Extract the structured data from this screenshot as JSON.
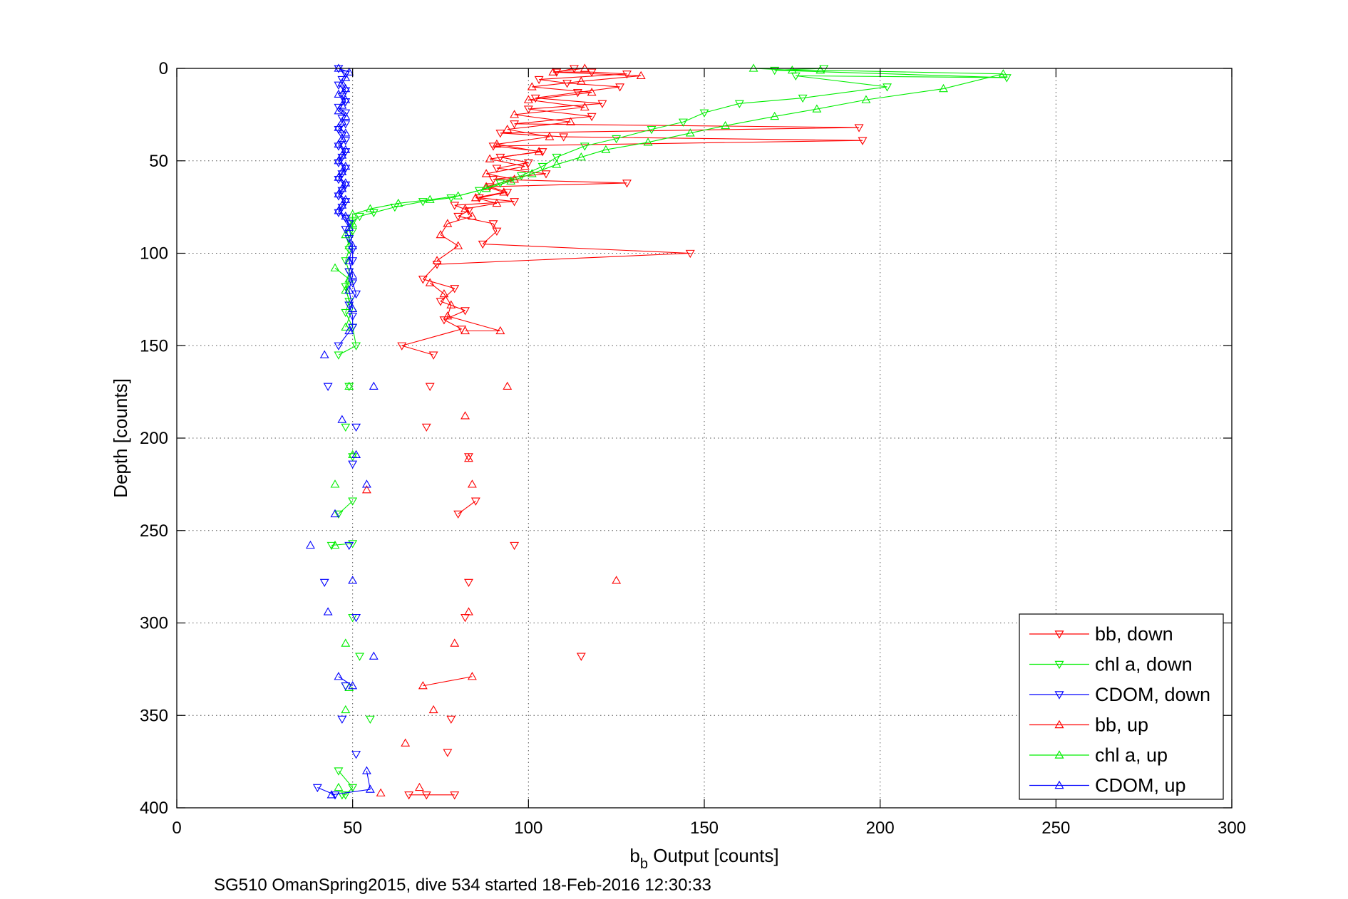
{
  "chart_data": {
    "type": "scatter",
    "xlabel_main": "b",
    "xlabel_sub": "b",
    "xlabel_rest": " Output [counts]",
    "ylabel": "Depth [counts]",
    "caption": "SG510 OmanSpring2015, dive 534 started 18-Feb-2016 12:30:33",
    "xlim": [
      0,
      300
    ],
    "ylim": [
      0,
      400
    ],
    "y_reversed": true,
    "grid": true,
    "legend_position": "bottom-right",
    "x_ticks": [
      "0",
      "50",
      "100",
      "150",
      "200",
      "250",
      "300"
    ],
    "y_ticks": [
      "0",
      "50",
      "100",
      "150",
      "200",
      "250",
      "300",
      "350",
      "400"
    ],
    "series": [
      {
        "name": "bb, down",
        "color": "#ff0000",
        "marker": "triangle-down",
        "points": [
          [
            113,
            0
          ],
          [
            108,
            2
          ],
          [
            118,
            2
          ],
          [
            128,
            3
          ],
          [
            103,
            6
          ],
          [
            111,
            8
          ],
          [
            126,
            10
          ],
          [
            114,
            13
          ],
          [
            102,
            16
          ],
          [
            121,
            19
          ],
          [
            100,
            22
          ],
          [
            118,
            26
          ],
          [
            96,
            30
          ],
          [
            194,
            32
          ],
          [
            92,
            35
          ],
          [
            110,
            37
          ],
          [
            195,
            39
          ],
          [
            90,
            42
          ],
          [
            104,
            45
          ],
          [
            92,
            48
          ],
          [
            100,
            51
          ],
          [
            91,
            54
          ],
          [
            105,
            57
          ],
          [
            90,
            60
          ],
          [
            128,
            62
          ],
          [
            89,
            64
          ],
          [
            94,
            67
          ],
          [
            86,
            70
          ],
          [
            96,
            72
          ],
          [
            79,
            74
          ],
          [
            83,
            77
          ],
          [
            80,
            80
          ],
          [
            90,
            84
          ],
          [
            91,
            88
          ],
          [
            87,
            95
          ],
          [
            146,
            100
          ],
          [
            74,
            106
          ],
          [
            70,
            114
          ],
          [
            79,
            119
          ],
          [
            75,
            126
          ],
          [
            82,
            131
          ],
          [
            76,
            136
          ],
          [
            81,
            141
          ],
          [
            64,
            150
          ],
          [
            73,
            155
          ],
          [
            72,
            172
          ],
          [
            71,
            194
          ],
          [
            83,
            210
          ],
          [
            85,
            234
          ],
          [
            80,
            241
          ],
          [
            96,
            258
          ],
          [
            83,
            278
          ],
          [
            82,
            297
          ],
          [
            115,
            318
          ],
          [
            78,
            352
          ],
          [
            77,
            370
          ],
          [
            79,
            393
          ],
          [
            71,
            393
          ],
          [
            66,
            393
          ]
        ]
      },
      {
        "name": "chl a, down",
        "color": "#00ee00",
        "marker": "triangle-down",
        "points": [
          [
            184,
            0
          ],
          [
            170,
            1
          ],
          [
            236,
            5
          ],
          [
            176,
            4
          ],
          [
            202,
            10
          ],
          [
            178,
            16
          ],
          [
            160,
            19
          ],
          [
            150,
            24
          ],
          [
            144,
            29
          ],
          [
            135,
            33
          ],
          [
            125,
            38
          ],
          [
            116,
            42
          ],
          [
            108,
            48
          ],
          [
            104,
            53
          ],
          [
            98,
            58
          ],
          [
            92,
            62
          ],
          [
            86,
            66
          ],
          [
            78,
            70
          ],
          [
            70,
            72
          ],
          [
            62,
            75
          ],
          [
            56,
            78
          ],
          [
            52,
            80
          ],
          [
            50,
            83
          ],
          [
            50,
            88
          ],
          [
            49,
            92
          ],
          [
            49,
            98
          ],
          [
            48,
            104
          ],
          [
            49,
            110
          ],
          [
            48,
            118
          ],
          [
            49,
            126
          ],
          [
            48,
            132
          ],
          [
            50,
            140
          ],
          [
            51,
            150
          ],
          [
            46,
            155
          ],
          [
            49,
            172
          ],
          [
            48,
            194
          ],
          [
            50,
            210
          ],
          [
            50,
            234
          ],
          [
            46,
            241
          ],
          [
            50,
            257
          ],
          [
            44,
            258
          ],
          [
            50,
            297
          ],
          [
            52,
            318
          ],
          [
            48,
            334
          ],
          [
            55,
            352
          ],
          [
            46,
            380
          ],
          [
            50,
            389
          ],
          [
            48,
            393
          ],
          [
            47,
            393
          ]
        ]
      },
      {
        "name": "CDOM, down",
        "color": "#0000ff",
        "marker": "triangle-down",
        "points": [
          [
            46,
            0
          ],
          [
            48,
            3
          ],
          [
            47,
            6
          ],
          [
            46,
            9
          ],
          [
            48,
            12
          ],
          [
            47,
            15
          ],
          [
            48,
            18
          ],
          [
            46,
            21
          ],
          [
            48,
            24
          ],
          [
            47,
            27
          ],
          [
            48,
            30
          ],
          [
            46,
            33
          ],
          [
            47,
            36
          ],
          [
            48,
            39
          ],
          [
            46,
            42
          ],
          [
            48,
            45
          ],
          [
            47,
            48
          ],
          [
            46,
            51
          ],
          [
            48,
            54
          ],
          [
            47,
            57
          ],
          [
            46,
            60
          ],
          [
            48,
            63
          ],
          [
            47,
            66
          ],
          [
            46,
            69
          ],
          [
            48,
            72
          ],
          [
            47,
            75
          ],
          [
            46,
            78
          ],
          [
            48,
            81
          ],
          [
            49,
            84
          ],
          [
            48,
            87
          ],
          [
            49,
            92
          ],
          [
            50,
            98
          ],
          [
            50,
            104
          ],
          [
            49,
            110
          ],
          [
            50,
            116
          ],
          [
            51,
            122
          ],
          [
            49,
            128
          ],
          [
            50,
            134
          ],
          [
            50,
            140
          ],
          [
            46,
            150
          ],
          [
            43,
            172
          ],
          [
            51,
            194
          ],
          [
            50,
            214
          ],
          [
            49,
            258
          ],
          [
            42,
            278
          ],
          [
            51,
            297
          ],
          [
            48,
            334
          ],
          [
            47,
            352
          ],
          [
            51,
            371
          ],
          [
            40,
            389
          ],
          [
            45,
            393
          ]
        ]
      },
      {
        "name": "bb, up",
        "color": "#ff0000",
        "marker": "triangle-up",
        "points": [
          [
            116,
            0
          ],
          [
            107,
            2
          ],
          [
            132,
            4
          ],
          [
            115,
            7
          ],
          [
            101,
            10
          ],
          [
            118,
            13
          ],
          [
            100,
            17
          ],
          [
            116,
            21
          ],
          [
            96,
            25
          ],
          [
            112,
            29
          ],
          [
            94,
            33
          ],
          [
            106,
            37
          ],
          [
            91,
            41
          ],
          [
            103,
            45
          ],
          [
            89,
            49
          ],
          [
            99,
            53
          ],
          [
            88,
            57
          ],
          [
            96,
            60
          ],
          [
            88,
            64
          ],
          [
            93,
            67
          ],
          [
            85,
            70
          ],
          [
            91,
            73
          ],
          [
            82,
            76
          ],
          [
            84,
            80
          ],
          [
            77,
            84
          ],
          [
            75,
            90
          ],
          [
            80,
            96
          ],
          [
            74,
            104
          ],
          [
            72,
            116
          ],
          [
            76,
            122
          ],
          [
            78,
            128
          ],
          [
            77,
            134
          ],
          [
            92,
            142
          ],
          [
            82,
            142
          ],
          [
            94,
            172
          ],
          [
            82,
            188
          ],
          [
            83,
            211
          ],
          [
            84,
            225
          ],
          [
            83,
            294
          ],
          [
            79,
            311
          ],
          [
            84,
            329
          ],
          [
            70,
            334
          ],
          [
            73,
            347
          ],
          [
            65,
            365
          ],
          [
            69,
            389
          ],
          [
            125,
            277
          ],
          [
            54,
            228
          ],
          [
            58,
            392
          ]
        ]
      },
      {
        "name": "chl a, up",
        "color": "#00ee00",
        "marker": "triangle-up",
        "points": [
          [
            164,
            0
          ],
          [
            175,
            1
          ],
          [
            183,
            1
          ],
          [
            235,
            3
          ],
          [
            218,
            11
          ],
          [
            196,
            17
          ],
          [
            182,
            22
          ],
          [
            170,
            26
          ],
          [
            156,
            31
          ],
          [
            146,
            35
          ],
          [
            134,
            40
          ],
          [
            122,
            44
          ],
          [
            115,
            48
          ],
          [
            108,
            52
          ],
          [
            101,
            57
          ],
          [
            95,
            61
          ],
          [
            88,
            65
          ],
          [
            80,
            69
          ],
          [
            72,
            71
          ],
          [
            63,
            73
          ],
          [
            55,
            76
          ],
          [
            50,
            79
          ],
          [
            50,
            84
          ],
          [
            48,
            90
          ],
          [
            49,
            96
          ],
          [
            45,
            108
          ],
          [
            49,
            114
          ],
          [
            48,
            120
          ],
          [
            50,
            130
          ],
          [
            48,
            140
          ],
          [
            49,
            172
          ],
          [
            50,
            209
          ],
          [
            45,
            225
          ],
          [
            45,
            258
          ],
          [
            48,
            311
          ],
          [
            49,
            335
          ],
          [
            48,
            347
          ],
          [
            46,
            389
          ]
        ]
      },
      {
        "name": "CDOM, up",
        "color": "#0000ff",
        "marker": "triangle-up",
        "points": [
          [
            46,
            0
          ],
          [
            49,
            2
          ],
          [
            48,
            5
          ],
          [
            47,
            8
          ],
          [
            48,
            11
          ],
          [
            46,
            14
          ],
          [
            48,
            17
          ],
          [
            47,
            20
          ],
          [
            46,
            23
          ],
          [
            48,
            26
          ],
          [
            47,
            29
          ],
          [
            46,
            32
          ],
          [
            48,
            35
          ],
          [
            47,
            38
          ],
          [
            46,
            41
          ],
          [
            48,
            44
          ],
          [
            47,
            47
          ],
          [
            46,
            50
          ],
          [
            48,
            53
          ],
          [
            47,
            56
          ],
          [
            46,
            59
          ],
          [
            48,
            62
          ],
          [
            47,
            65
          ],
          [
            46,
            68
          ],
          [
            48,
            71
          ],
          [
            47,
            74
          ],
          [
            46,
            77
          ],
          [
            48,
            80
          ],
          [
            49,
            86
          ],
          [
            50,
            96
          ],
          [
            49,
            104
          ],
          [
            50,
            112
          ],
          [
            49,
            120
          ],
          [
            50,
            130
          ],
          [
            49,
            142
          ],
          [
            42,
            155
          ],
          [
            56,
            172
          ],
          [
            47,
            190
          ],
          [
            51,
            209
          ],
          [
            54,
            225
          ],
          [
            45,
            241
          ],
          [
            38,
            258
          ],
          [
            50,
            277
          ],
          [
            43,
            294
          ],
          [
            56,
            318
          ],
          [
            46,
            329
          ],
          [
            50,
            334
          ],
          [
            54,
            380
          ],
          [
            55,
            390
          ],
          [
            44,
            393
          ]
        ]
      }
    ]
  }
}
